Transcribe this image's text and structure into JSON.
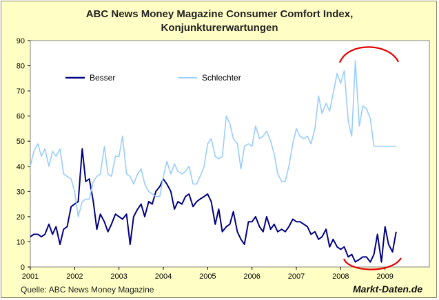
{
  "title_line1": "ABC News Money Magazine Consumer Comfort Index,",
  "title_line2": "Konjunkturerwartungen",
  "source": "Quelle: ABC News Money Magazine",
  "credit": "Markt-Daten.de",
  "chart_data": {
    "type": "line",
    "title": "ABC News Money Magazine Consumer Comfort Index, Konjunkturerwartungen",
    "xlabel": "",
    "ylabel": "",
    "xlim": [
      2001.0,
      2010.0
    ],
    "ylim": [
      0,
      90
    ],
    "y_ticks": [
      0,
      10,
      20,
      30,
      40,
      50,
      60,
      70,
      80,
      90
    ],
    "x_ticks": [
      "2001",
      "2002",
      "2003",
      "2004",
      "2005",
      "2006",
      "2007",
      "2008",
      "2009"
    ],
    "grid": false,
    "legend_position": "top-left",
    "annotations": [
      "red arc highlighting 2009 peak of Schlechter",
      "red arc highlighting 2009 low of Besser"
    ],
    "series": [
      {
        "name": "Besser",
        "color": "#000080",
        "x": [
          2001.0,
          2001.08,
          2001.17,
          2001.25,
          2001.33,
          2001.42,
          2001.5,
          2001.58,
          2001.67,
          2001.75,
          2001.83,
          2001.92,
          2002.0,
          2002.08,
          2002.17,
          2002.25,
          2002.33,
          2002.42,
          2002.5,
          2002.58,
          2002.67,
          2002.75,
          2002.83,
          2002.92,
          2003.0,
          2003.08,
          2003.17,
          2003.25,
          2003.33,
          2003.42,
          2003.5,
          2003.58,
          2003.67,
          2003.75,
          2003.83,
          2003.92,
          2004.0,
          2004.08,
          2004.17,
          2004.25,
          2004.33,
          2004.42,
          2004.5,
          2004.58,
          2004.67,
          2004.75,
          2004.83,
          2004.92,
          2005.0,
          2005.08,
          2005.17,
          2005.25,
          2005.33,
          2005.42,
          2005.5,
          2005.58,
          2005.67,
          2005.75,
          2005.83,
          2005.92,
          2006.0,
          2006.08,
          2006.17,
          2006.25,
          2006.33,
          2006.42,
          2006.5,
          2006.58,
          2006.67,
          2006.75,
          2006.83,
          2006.92,
          2007.0,
          2007.08,
          2007.17,
          2007.25,
          2007.33,
          2007.42,
          2007.5,
          2007.58,
          2007.67,
          2007.75,
          2007.83,
          2007.92,
          2008.0,
          2008.08,
          2008.17,
          2008.25,
          2008.33,
          2008.42,
          2008.5,
          2008.58,
          2008.67,
          2008.75,
          2008.83,
          2008.92,
          2009.0,
          2009.08,
          2009.17,
          2009.25
        ],
        "values": [
          12,
          13,
          13,
          12,
          13,
          17,
          13,
          16,
          9,
          15,
          16,
          24,
          25,
          26,
          47,
          34,
          35,
          26,
          15,
          21,
          18,
          14,
          17,
          21,
          20,
          19,
          21,
          9,
          20,
          23,
          25,
          20,
          26,
          25,
          30,
          32,
          35,
          33,
          30,
          23,
          26,
          25,
          28,
          29,
          24,
          26,
          27,
          28,
          29,
          26,
          17,
          23,
          14,
          16,
          17,
          22,
          14,
          11,
          9,
          18,
          18,
          20,
          16,
          14,
          20,
          15,
          17,
          14,
          15,
          14,
          16,
          19,
          18,
          18,
          17,
          16,
          13,
          14,
          11,
          12,
          15,
          8,
          11,
          8,
          7,
          8,
          4,
          5,
          2,
          3,
          4,
          4,
          2,
          5,
          13,
          2,
          16,
          9,
          6,
          14
        ]
      },
      {
        "name": "Schlechter",
        "color": "#99ccff",
        "x": [
          2001.0,
          2001.08,
          2001.17,
          2001.25,
          2001.33,
          2001.42,
          2001.5,
          2001.58,
          2001.67,
          2001.75,
          2001.83,
          2001.92,
          2002.0,
          2002.08,
          2002.17,
          2002.25,
          2002.33,
          2002.42,
          2002.5,
          2002.58,
          2002.67,
          2002.75,
          2002.83,
          2002.92,
          2003.0,
          2003.08,
          2003.17,
          2003.25,
          2003.33,
          2003.42,
          2003.5,
          2003.58,
          2003.67,
          2003.75,
          2003.83,
          2003.92,
          2004.0,
          2004.08,
          2004.17,
          2004.25,
          2004.33,
          2004.42,
          2004.5,
          2004.58,
          2004.67,
          2004.75,
          2004.83,
          2004.92,
          2005.0,
          2005.08,
          2005.17,
          2005.25,
          2005.33,
          2005.42,
          2005.5,
          2005.58,
          2005.67,
          2005.75,
          2005.83,
          2005.92,
          2006.0,
          2006.08,
          2006.17,
          2006.25,
          2006.33,
          2006.42,
          2006.5,
          2006.58,
          2006.67,
          2006.75,
          2006.83,
          2006.92,
          2007.0,
          2007.08,
          2007.17,
          2007.25,
          2007.33,
          2007.42,
          2007.5,
          2007.58,
          2007.67,
          2007.75,
          2007.83,
          2007.92,
          2008.0,
          2008.08,
          2008.17,
          2008.25,
          2008.33,
          2008.42,
          2008.5,
          2008.58,
          2008.67,
          2008.75,
          2008.83,
          2008.92,
          2009.0,
          2009.08,
          2009.17,
          2009.25
        ],
        "values": [
          40,
          46,
          49,
          44,
          47,
          40,
          46,
          44,
          47,
          37,
          36,
          35,
          30,
          20,
          26,
          27,
          27,
          34,
          36,
          37,
          48,
          37,
          36,
          44,
          44,
          52,
          37,
          36,
          33,
          37,
          39,
          33,
          30,
          29,
          28,
          28,
          36,
          42,
          37,
          41,
          38,
          37,
          38,
          40,
          33,
          33,
          36,
          40,
          49,
          51,
          44,
          43,
          44,
          60,
          57,
          51,
          49,
          39,
          48,
          49,
          48,
          56,
          51,
          52,
          54,
          50,
          45,
          37,
          34,
          34,
          40,
          49,
          55,
          52,
          51,
          52,
          49,
          55,
          68,
          61,
          65,
          62,
          69,
          77,
          73,
          78,
          58,
          52,
          82,
          56,
          64,
          63,
          59,
          48,
          48,
          48,
          48,
          48,
          48,
          48
        ]
      }
    ]
  }
}
